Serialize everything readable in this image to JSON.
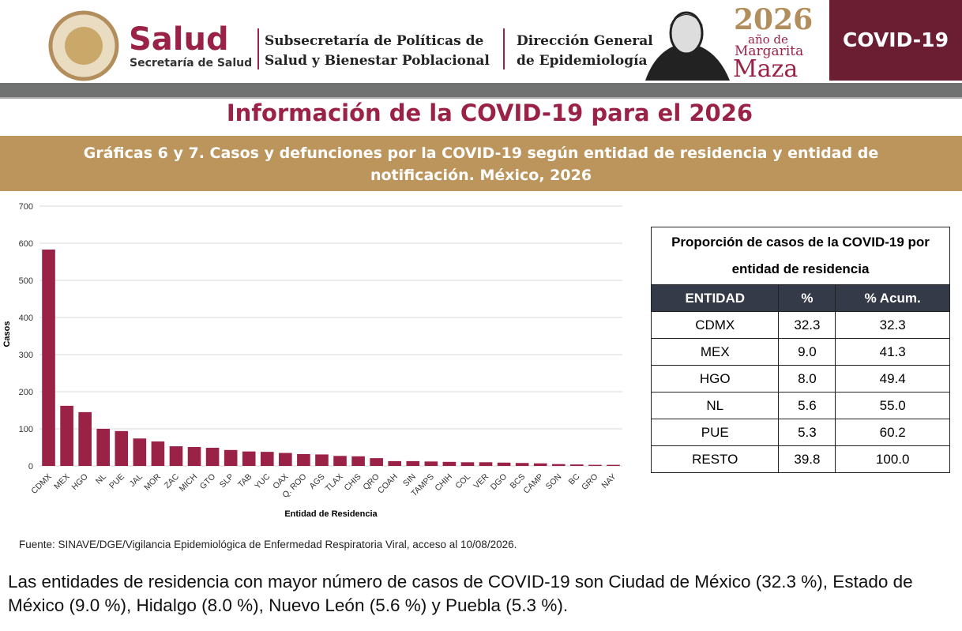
{
  "header": {
    "brand": "Salud",
    "brand_sub": "Secretaría de Salud",
    "unit_line1": "Subsecretaría de Políticas de",
    "unit_line2": "Salud y Bienestar Poblacional",
    "office_line1": "Dirección General",
    "office_line2": "de Epidemiología",
    "year": "2026",
    "year_sub": "año de",
    "honoree_first": "Margarita",
    "honoree_last": "Maza",
    "tag": "COVID-19"
  },
  "title": "Información de la COVID-19 para el 2026",
  "subtitle": "Gráficas 6 y 7. Casos y defunciones por la COVID-19  según entidad de residencia y entidad de notificación. México, 2026",
  "chart_data": {
    "type": "bar",
    "y_label": "Casos",
    "x_label": "Entidad de Residencia",
    "color": "#9b2247",
    "grid": true,
    "categories": [
      "CDMX",
      "MEX",
      "HGO",
      "NL",
      "PUE",
      "JAL",
      "MOR",
      "ZAC",
      "MICH",
      "GTO",
      "SLP",
      "TAB",
      "YUC",
      "OAX",
      "Q. ROO",
      "AGS",
      "TLAX",
      "CHIS",
      "QRO",
      "COAH",
      "SIN",
      "TAMPS",
      "CHIH",
      "COL",
      "VER",
      "DGO",
      "BCS",
      "CAMP",
      "SON",
      "BC",
      "GRO",
      "NAY"
    ],
    "values": [
      583,
      162,
      145,
      100,
      94,
      74,
      66,
      53,
      51,
      49,
      43,
      39,
      38,
      35,
      32,
      31,
      27,
      26,
      21,
      13,
      13,
      12,
      11,
      10,
      10,
      9,
      8,
      7,
      5,
      4,
      3,
      3
    ],
    "ylim": [
      0,
      700
    ],
    "yticks": [
      0,
      100,
      200,
      300,
      400,
      500,
      600,
      700
    ]
  },
  "table": {
    "title": "Proporción de casos de la COVID-19 por entidad de residencia",
    "columns": [
      "ENTIDAD",
      "%",
      "% Acum."
    ],
    "rows": [
      [
        "CDMX",
        "32.3",
        "32.3"
      ],
      [
        "MEX",
        "9.0",
        "41.3"
      ],
      [
        "HGO",
        "8.0",
        "49.4"
      ],
      [
        "NL",
        "5.6",
        "55.0"
      ],
      [
        "PUE",
        "5.3",
        "60.2"
      ],
      [
        "RESTO",
        "39.8",
        "100.0"
      ]
    ]
  },
  "source": "Fuente: SINAVE/DGE/Vigilancia Epidemiológica de Enfermedad Respiratoria Viral, acceso al 10/08/2026.",
  "summary": "Las entidades de residencia con mayor número de casos de COVID-19 son Ciudad de México (32.3 %), Estado de México (9.0 %), Hidalgo (8.0 %), Nuevo León (5.6 %) y Puebla (5.3 %)."
}
